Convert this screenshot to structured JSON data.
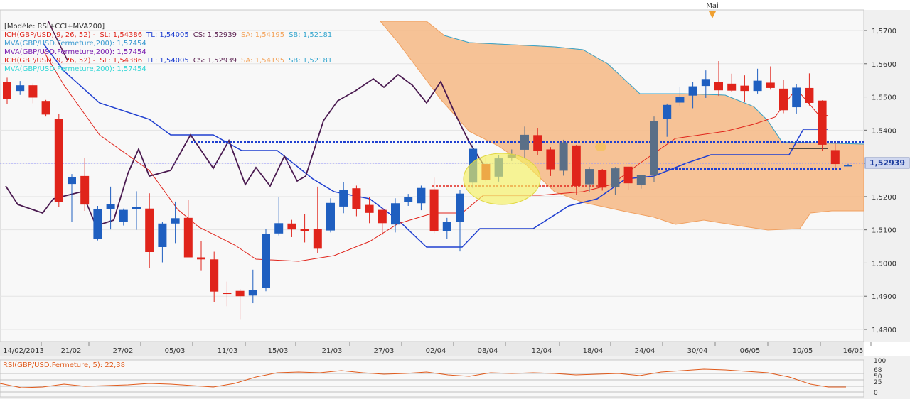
{
  "chart_data": {
    "type": "candlestick",
    "symbol": "GBP/USD",
    "model_label": "[Modèle: RSI+CCI+MVA200]",
    "legend": [
      {
        "text": "ICH(GBP/USD, 9, 26, 52) -",
        "color": "#e0241b",
        "parts": [
          {
            "text": "SL: 1,54386",
            "color": "#e0241b"
          },
          {
            "text": "TL: 1,54005",
            "color": "#1f3fd0"
          },
          {
            "text": "CS: 1,52939",
            "color": "#5a1f4f"
          },
          {
            "text": "SA: 1,54195",
            "color": "#f3a35a"
          },
          {
            "text": "SB: 1,52181",
            "color": "#35a6cf"
          }
        ]
      },
      {
        "text": "MVA(GBP/USD.Fermeture,200): 1,57454",
        "color": "#3a9ad0",
        "parts": []
      },
      {
        "text": "MVA(GBP/USD.Fermeture,200): 1,57454",
        "color": "#7a1fb0",
        "parts": []
      },
      {
        "text": "ICH(GBP/USD, 9, 26, 52) -",
        "color": "#e0241b",
        "parts": [
          {
            "text": "SL: 1,54386",
            "color": "#e0241b"
          },
          {
            "text": "TL: 1,54005",
            "color": "#1f3fd0"
          },
          {
            "text": "CS: 1,52939",
            "color": "#5a1f4f"
          },
          {
            "text": "SA: 1,54195",
            "color": "#f3a35a"
          },
          {
            "text": "SB: 1,52181",
            "color": "#35a6cf"
          }
        ]
      },
      {
        "text": "MVA(GBP/USD.Fermeture,200): 1,57454",
        "color": "#35d6d6",
        "parts": []
      }
    ],
    "x_labels": [
      "14/02/2013",
      "21/02",
      "27/02",
      "05/03",
      "11/03",
      "15/03",
      "21/03",
      "27/03",
      "02/04",
      "08/04",
      "12/04",
      "18/04",
      "24/04",
      "30/04",
      "06/05",
      "10/05",
      "16/05"
    ],
    "y_ticks": [
      "1,5700",
      "1,5600",
      "1,5500",
      "1,5400",
      "1,5300",
      "1,5200",
      "1,5100",
      "1,5000",
      "1,4900",
      "1,4800"
    ],
    "ylim": [
      1.475,
      1.575
    ],
    "current_price": "1,52939",
    "month_marker": "Mai",
    "candles": [
      {
        "o": 1.5545,
        "h": 1.5558,
        "c": 1.5493,
        "l": 1.5479
      },
      {
        "o": 1.5518,
        "h": 1.5548,
        "c": 1.5535,
        "l": 1.5506
      },
      {
        "o": 1.5535,
        "h": 1.5541,
        "c": 1.5498,
        "l": 1.5481
      },
      {
        "o": 1.5488,
        "h": 1.5491,
        "c": 1.5447,
        "l": 1.5441
      },
      {
        "o": 1.5433,
        "h": 1.5448,
        "c": 1.5184,
        "l": 1.5169
      },
      {
        "o": 1.5238,
        "h": 1.5268,
        "c": 1.5259,
        "l": 1.5123
      },
      {
        "o": 1.5262,
        "h": 1.5316,
        "c": 1.5176,
        "l": 1.5157
      },
      {
        "o": 1.5072,
        "h": 1.5172,
        "c": 1.5162,
        "l": 1.5068
      },
      {
        "o": 1.5162,
        "h": 1.523,
        "c": 1.5178,
        "l": 1.5101
      },
      {
        "o": 1.5124,
        "h": 1.5164,
        "c": 1.516,
        "l": 1.5113
      },
      {
        "o": 1.5162,
        "h": 1.5216,
        "c": 1.5169,
        "l": 1.51
      },
      {
        "o": 1.5164,
        "h": 1.521,
        "c": 1.5033,
        "l": 1.4986
      },
      {
        "o": 1.5048,
        "h": 1.5124,
        "c": 1.5119,
        "l": 1.5002
      },
      {
        "o": 1.5119,
        "h": 1.5185,
        "c": 1.5135,
        "l": 1.506
      },
      {
        "o": 1.5136,
        "h": 1.519,
        "c": 1.5017,
        "l": 1.5018
      },
      {
        "o": 1.5017,
        "h": 1.5065,
        "c": 1.5011,
        "l": 1.4976
      },
      {
        "o": 1.5011,
        "h": 1.5034,
        "c": 1.4914,
        "l": 1.4883
      },
      {
        "o": 1.491,
        "h": 1.4944,
        "c": 1.4908,
        "l": 1.487
      },
      {
        "o": 1.4916,
        "h": 1.4922,
        "c": 1.49,
        "l": 1.4829
      },
      {
        "o": 1.4902,
        "h": 1.498,
        "c": 1.4919,
        "l": 1.4879
      },
      {
        "o": 1.4926,
        "h": 1.5103,
        "c": 1.5088,
        "l": 1.4915
      },
      {
        "o": 1.5089,
        "h": 1.5198,
        "c": 1.512,
        "l": 1.5083
      },
      {
        "o": 1.5119,
        "h": 1.513,
        "c": 1.5101,
        "l": 1.5078
      },
      {
        "o": 1.5103,
        "h": 1.5148,
        "c": 1.5095,
        "l": 1.5062
      },
      {
        "o": 1.5102,
        "h": 1.523,
        "c": 1.5043,
        "l": 1.503
      },
      {
        "o": 1.5098,
        "h": 1.5195,
        "c": 1.5181,
        "l": 1.5092
      },
      {
        "o": 1.517,
        "h": 1.5244,
        "c": 1.522,
        "l": 1.515
      },
      {
        "o": 1.5225,
        "h": 1.5233,
        "c": 1.5162,
        "l": 1.5141
      },
      {
        "o": 1.5175,
        "h": 1.5199,
        "c": 1.5151,
        "l": 1.512
      },
      {
        "o": 1.516,
        "h": 1.5165,
        "c": 1.512,
        "l": 1.5085
      },
      {
        "o": 1.5116,
        "h": 1.5195,
        "c": 1.518,
        "l": 1.5092
      },
      {
        "o": 1.5184,
        "h": 1.5208,
        "c": 1.5199,
        "l": 1.5172
      },
      {
        "o": 1.518,
        "h": 1.5233,
        "c": 1.5226,
        "l": 1.5159
      },
      {
        "o": 1.5222,
        "h": 1.5257,
        "c": 1.5095,
        "l": 1.509
      },
      {
        "o": 1.5097,
        "h": 1.5136,
        "c": 1.5124,
        "l": 1.5072
      },
      {
        "o": 1.5124,
        "h": 1.522,
        "c": 1.5209,
        "l": 1.5035
      },
      {
        "o": 1.5242,
        "h": 1.5357,
        "c": 1.5344,
        "l": 1.5225
      },
      {
        "o": 1.5298,
        "h": 1.5318,
        "c": 1.5251,
        "l": 1.5245
      },
      {
        "o": 1.526,
        "h": 1.5324,
        "c": 1.5315,
        "l": 1.5245
      },
      {
        "o": 1.5317,
        "h": 1.5342,
        "c": 1.5327,
        "l": 1.5307
      },
      {
        "o": 1.5341,
        "h": 1.5411,
        "c": 1.5386,
        "l": 1.5315
      },
      {
        "o": 1.5385,
        "h": 1.5407,
        "c": 1.5338,
        "l": 1.5326
      },
      {
        "o": 1.5342,
        "h": 1.5349,
        "c": 1.5282,
        "l": 1.5262
      },
      {
        "o": 1.5278,
        "h": 1.5371,
        "c": 1.5363,
        "l": 1.5263
      },
      {
        "o": 1.5354,
        "h": 1.5356,
        "c": 1.5232,
        "l": 1.5206
      },
      {
        "o": 1.5237,
        "h": 1.5289,
        "c": 1.5283,
        "l": 1.5214
      },
      {
        "o": 1.528,
        "h": 1.5283,
        "c": 1.5227,
        "l": 1.5218
      },
      {
        "o": 1.5228,
        "h": 1.5289,
        "c": 1.5285,
        "l": 1.5205
      },
      {
        "o": 1.529,
        "h": 1.529,
        "c": 1.524,
        "l": 1.5219
      },
      {
        "o": 1.5236,
        "h": 1.5258,
        "c": 1.5265,
        "l": 1.5224
      },
      {
        "o": 1.5265,
        "h": 1.5441,
        "c": 1.5428,
        "l": 1.5244
      },
      {
        "o": 1.5434,
        "h": 1.548,
        "c": 1.5476,
        "l": 1.538
      },
      {
        "o": 1.5483,
        "h": 1.5531,
        "c": 1.55,
        "l": 1.5474
      },
      {
        "o": 1.5504,
        "h": 1.5545,
        "c": 1.5532,
        "l": 1.5466
      },
      {
        "o": 1.5533,
        "h": 1.558,
        "c": 1.5554,
        "l": 1.5497
      },
      {
        "o": 1.5545,
        "h": 1.5608,
        "c": 1.552,
        "l": 1.5503
      },
      {
        "o": 1.554,
        "h": 1.557,
        "c": 1.5519,
        "l": 1.5515
      },
      {
        "o": 1.5534,
        "h": 1.5565,
        "c": 1.5518,
        "l": 1.5484
      },
      {
        "o": 1.5518,
        "h": 1.5585,
        "c": 1.5549,
        "l": 1.551
      },
      {
        "o": 1.5543,
        "h": 1.5592,
        "c": 1.5527,
        "l": 1.5522
      },
      {
        "o": 1.5525,
        "h": 1.5551,
        "c": 1.546,
        "l": 1.5451
      },
      {
        "o": 1.5469,
        "h": 1.5538,
        "c": 1.5528,
        "l": 1.545
      },
      {
        "o": 1.5527,
        "h": 1.5571,
        "c": 1.5482,
        "l": 1.5474
      },
      {
        "o": 1.5489,
        "h": 1.549,
        "c": 1.5356,
        "l": 1.5338
      },
      {
        "o": 1.534,
        "h": 1.5365,
        "c": 1.5298,
        "l": 1.5286
      },
      {
        "o": 1.5294,
        "h": 1.5298,
        "c": 1.5294,
        "l": 1.5294
      }
    ],
    "rsi_panel": {
      "label": "RSI(GBP/USD.Fermeture, 5): 22,38",
      "levels": [
        "100",
        "68",
        "50",
        "25",
        "0"
      ]
    }
  }
}
